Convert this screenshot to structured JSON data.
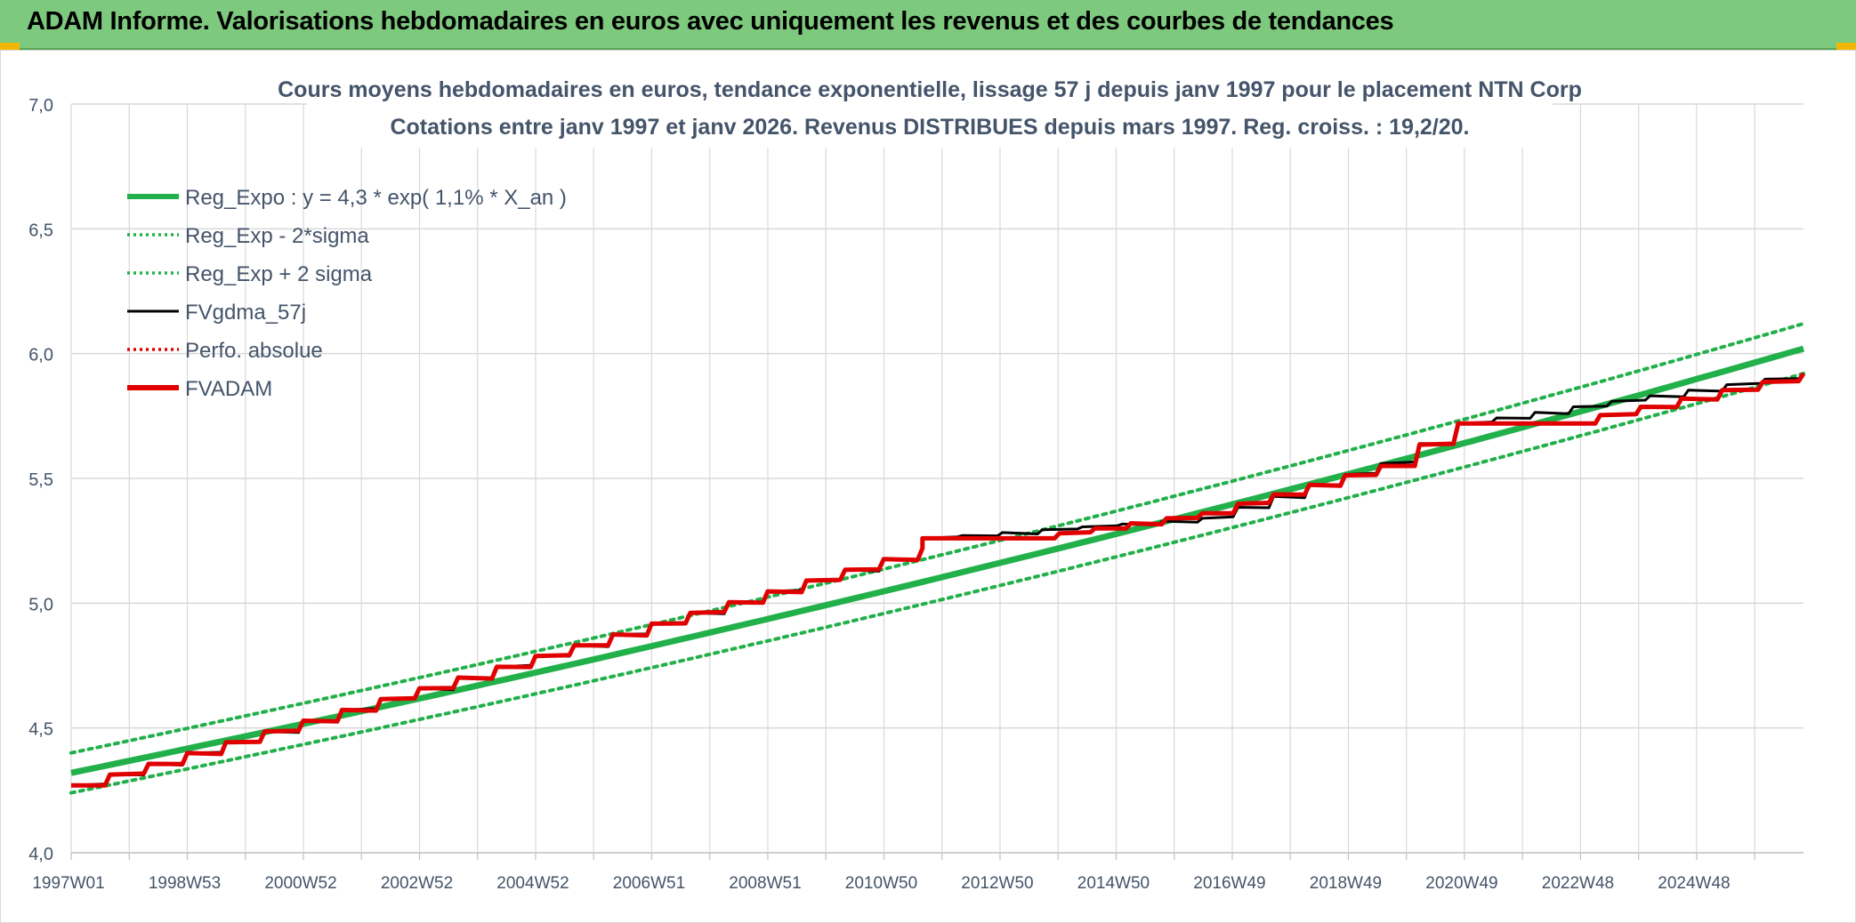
{
  "banner": {
    "title": "ADAM Informe. Valorisations hebdomadaires en euros avec uniquement les revenus et des courbes de tendances"
  },
  "colors": {
    "banner_bg": "#7dc97d",
    "reg_expo": "#22b04a",
    "fv_gdma": "#000000",
    "perfo": "#e00000",
    "fvadam": "#e00000",
    "grid": "#d9d9d9",
    "title_text": "#44546a"
  },
  "chart_data": {
    "type": "line",
    "title": "Cours moyens hebdomadaires en euros, tendance exponentielle, lissage 57 j depuis janv 1997 pour le placement NTN Corp",
    "subtitle": "Cotations entre janv 1997 et janv 2026. Revenus DISTRIBUES depuis mars 1997. Reg. croiss. : 19,2/20.",
    "xlabel": "",
    "ylabel": "",
    "x_range": [
      1997.0,
      2026.1
    ],
    "ylim": [
      4.0,
      7.0
    ],
    "y_ticks": [
      "4,0",
      "4,5",
      "5,0",
      "5,5",
      "6,0",
      "6,5",
      "7,0"
    ],
    "x_ticks": [
      "1997W01",
      "1998W53",
      "2000W52",
      "2002W52",
      "2004W52",
      "2006W51",
      "2008W51",
      "2010W50",
      "2012W50",
      "2014W50",
      "2016W49",
      "2018W49",
      "2020W49",
      "2022W48",
      "2024W48"
    ],
    "grid": true,
    "legend_position": "top-left",
    "series": [
      {
        "name": "Reg_Expo : y = 4,3 * exp( 1,1% *  X_an )",
        "style": "solid-thick",
        "color": "#22b04a",
        "x": [
          1997.0,
          2026.1
        ],
        "y": [
          4.32,
          6.02
        ]
      },
      {
        "name": "Reg_Exp - 2*sigma",
        "style": "dotted",
        "color": "#22b04a",
        "x": [
          1997.0,
          2026.1
        ],
        "y": [
          4.24,
          5.92
        ]
      },
      {
        "name": "Reg_Exp + 2 sigma",
        "style": "dotted",
        "color": "#22b04a",
        "x": [
          1997.0,
          2026.1
        ],
        "y": [
          4.4,
          6.12
        ]
      },
      {
        "name": "FVgdma_57j",
        "style": "solid",
        "color": "#000000",
        "x": [
          1997.0,
          2011.3,
          2011.3,
          2016.0,
          2016.0,
          2019.0,
          2019.0,
          2020.3,
          2020.3,
          2026.1
        ],
        "y": [
          4.27,
          5.22,
          5.26,
          5.34,
          5.34,
          5.56,
          5.56,
          5.72,
          5.72,
          5.92
        ]
      },
      {
        "name": "Perfo. absolue",
        "style": "dotted",
        "color": "#e00000",
        "x": [],
        "y": []
      },
      {
        "name": "FVADAM",
        "style": "solid-thick",
        "color": "#e00000",
        "x": [
          1997.0,
          2011.3,
          2011.3,
          2013.0,
          2016.0,
          2019.0,
          2020.3,
          2022.0,
          2026.1
        ],
        "y": [
          4.27,
          5.22,
          5.26,
          5.26,
          5.36,
          5.55,
          5.72,
          5.72,
          5.92
        ]
      }
    ]
  }
}
